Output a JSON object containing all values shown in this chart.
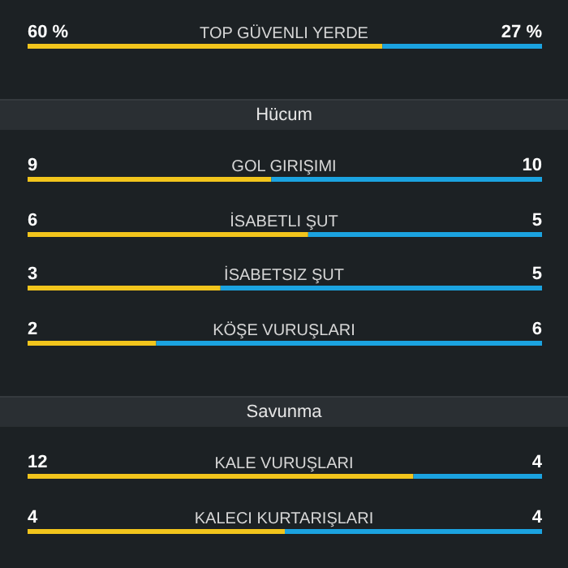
{
  "chart_data": [
    {
      "type": "bar",
      "orientation": "horizontal",
      "stacked": true,
      "categories": [
        "TOP GÜVENLI YERDE"
      ],
      "series": [
        {
          "color": "#f2c51c",
          "values": [
            60
          ],
          "value_labels": [
            "60 %"
          ]
        },
        {
          "color": "#1ba3e0",
          "values": [
            27
          ],
          "value_labels": [
            "27 %"
          ]
        }
      ]
    },
    {
      "type": "bar",
      "orientation": "horizontal",
      "stacked": true,
      "data_labels": true,
      "title": "Hücum",
      "categories": [
        "GOL GIRIŞIMI"
      ],
      "series": [
        {
          "color": "#f2c51c",
          "values": [
            9
          ]
        },
        {
          "color": "#1ba3e0",
          "values": [
            10
          ]
        }
      ]
    },
    {
      "type": "bar",
      "orientation": "horizontal",
      "stacked": true,
      "data_labels": true,
      "categories": [
        "İSABETLI ŞUT"
      ],
      "series": [
        {
          "color": "#f2c51c",
          "values": [
            6
          ]
        },
        {
          "color": "#1ba3e0",
          "values": [
            5
          ]
        }
      ]
    },
    {
      "type": "bar",
      "orientation": "horizontal",
      "stacked": true,
      "data_labels": true,
      "categories": [
        "İSABETSIZ ŞUT"
      ],
      "series": [
        {
          "color": "#f2c51c",
          "values": [
            3
          ]
        },
        {
          "color": "#1ba3e0",
          "values": [
            5
          ]
        }
      ]
    },
    {
      "type": "bar",
      "orientation": "horizontal",
      "stacked": true,
      "data_labels": true,
      "categories": [
        "KÖŞE VURUŞLARI"
      ],
      "series": [
        {
          "color": "#f2c51c",
          "values": [
            2
          ]
        },
        {
          "color": "#1ba3e0",
          "values": [
            6
          ]
        }
      ]
    },
    {
      "type": "bar",
      "orientation": "horizontal",
      "stacked": true,
      "data_labels": true,
      "title": "Savunma",
      "categories": [
        "KALE VURUŞLARI"
      ],
      "series": [
        {
          "color": "#f2c51c",
          "values": [
            12
          ]
        },
        {
          "color": "#1ba3e0",
          "values": [
            4
          ]
        }
      ]
    },
    {
      "type": "bar",
      "orientation": "horizontal",
      "stacked": true,
      "data_labels": true,
      "categories": [
        "KALECI KURTARIŞLARI"
      ],
      "series": [
        {
          "color": "#f2c51c",
          "values": [
            4
          ]
        },
        {
          "color": "#1ba3e0",
          "values": [
            4
          ]
        }
      ]
    }
  ]
}
